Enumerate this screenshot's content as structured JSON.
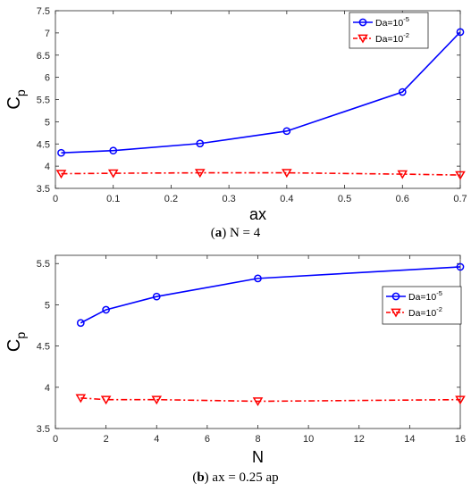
{
  "panels": [
    {
      "caption_letter": "a",
      "caption_text": "N = 4"
    },
    {
      "caption_letter": "b",
      "caption_text": "ax = 0.25 ap"
    }
  ],
  "colors": {
    "series_1": "#0000ff",
    "series_2": "#ff0000"
  },
  "chart_data": [
    {
      "type": "line",
      "xlabel": "ax",
      "ylabel": "C_p",
      "xlim": [
        0,
        0.7
      ],
      "ylim": [
        3.5,
        7.5
      ],
      "xticks": [
        "0",
        "0.1",
        "0.2",
        "0.3",
        "0.4",
        "0.5",
        "0.6",
        "0.7"
      ],
      "yticks": [
        "3.5",
        "4",
        "4.5",
        "5",
        "5.5",
        "6",
        "6.5",
        "7",
        "7.5"
      ],
      "grid": false,
      "legend_position": "top-right",
      "series": [
        {
          "name": "Da=10^-5",
          "legend_base": "Da=10",
          "legend_exp": "-5",
          "marker": "circle",
          "line_style": "solid",
          "x": [
            0.01,
            0.1,
            0.25,
            0.4,
            0.6,
            0.7
          ],
          "y": [
            4.3,
            4.35,
            4.51,
            4.79,
            5.67,
            7.02
          ]
        },
        {
          "name": "Da=10^-2",
          "legend_base": "Da=10",
          "legend_exp": "-2",
          "marker": "triangle-down",
          "line_style": "dash-dot",
          "x": [
            0.01,
            0.1,
            0.25,
            0.4,
            0.6,
            0.7
          ],
          "y": [
            3.83,
            3.84,
            3.85,
            3.85,
            3.82,
            3.8
          ]
        }
      ]
    },
    {
      "type": "line",
      "xlabel": "N",
      "ylabel": "C_p",
      "xlim": [
        0,
        16
      ],
      "ylim": [
        3.5,
        5.6
      ],
      "xticks": [
        "0",
        "2",
        "4",
        "6",
        "8",
        "10",
        "12",
        "14",
        "16"
      ],
      "yticks": [
        "3.5",
        "4",
        "4.5",
        "5",
        "5.5"
      ],
      "grid": false,
      "legend_position": "right",
      "series": [
        {
          "name": "Da=10^-5",
          "legend_base": "Da=10",
          "legend_exp": "-5",
          "marker": "circle",
          "line_style": "solid",
          "x": [
            1,
            2,
            4,
            8,
            16
          ],
          "y": [
            4.78,
            4.94,
            5.1,
            5.32,
            5.46
          ]
        },
        {
          "name": "Da=10^-2",
          "legend_base": "Da=10",
          "legend_exp": "-2",
          "marker": "triangle-down",
          "line_style": "dash-dot",
          "x": [
            1,
            2,
            4,
            8,
            16
          ],
          "y": [
            3.87,
            3.85,
            3.85,
            3.83,
            3.85
          ]
        }
      ]
    }
  ]
}
